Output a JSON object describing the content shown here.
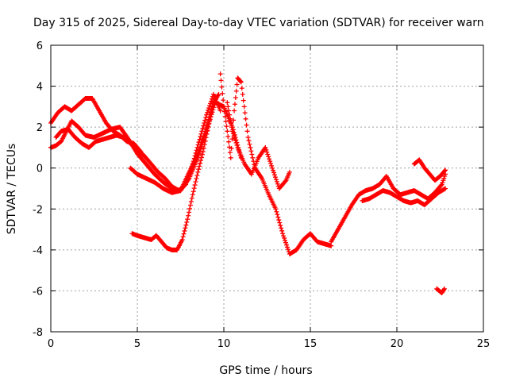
{
  "chart_data": {
    "type": "scatter",
    "title": "Day 315 of 2025, Sidereal Day-to-day VTEC variation (SDTVAR) for receiver warn",
    "xlabel": "GPS time / hours",
    "ylabel": "SDTVAR / TECUs",
    "xlim": [
      0,
      25
    ],
    "ylim": [
      -8,
      6
    ],
    "xticks": [
      0,
      5,
      10,
      15,
      20,
      25
    ],
    "yticks": [
      -8,
      -6,
      -4,
      -2,
      0,
      2,
      4,
      6
    ],
    "xtick_labels": [
      "0",
      "5",
      "10",
      "15",
      "20",
      "25"
    ],
    "ytick_labels": [
      "-8",
      "-6",
      "-4",
      "-2",
      "0",
      "2",
      "4",
      "6"
    ],
    "grid": true,
    "marker": "+",
    "color": "#ff0000",
    "series": [
      {
        "name": "trace-a",
        "x": [
          0.0,
          0.4,
          0.8,
          1.2,
          1.6,
          2.0,
          2.4,
          2.8,
          3.2,
          3.6,
          4.0,
          4.4,
          4.8,
          5.2
        ],
        "y": [
          2.2,
          2.7,
          3.0,
          2.8,
          3.1,
          3.4,
          3.4,
          2.8,
          2.2,
          1.8,
          1.6,
          1.3,
          1.2,
          0.8
        ]
      },
      {
        "name": "trace-b",
        "x": [
          0.0,
          0.3,
          0.6,
          0.9,
          1.2,
          1.6,
          2.0,
          2.5,
          3.0,
          3.5,
          4.0,
          4.5,
          5.0,
          5.5,
          6.0,
          6.5,
          7.0,
          7.5,
          8.0,
          8.5,
          9.0,
          9.5
        ],
        "y": [
          1.0,
          1.1,
          1.3,
          1.8,
          2.3,
          2.0,
          1.6,
          1.5,
          1.7,
          1.9,
          2.0,
          1.4,
          0.7,
          0.2,
          -0.3,
          -0.7,
          -1.0,
          -1.1,
          -0.2,
          0.7,
          2.0,
          3.5
        ]
      },
      {
        "name": "trace-c",
        "x": [
          0.3,
          0.6,
          1.0,
          1.4,
          1.8,
          2.2,
          2.6,
          3.0,
          3.4,
          3.8,
          4.2,
          4.6,
          5.0,
          5.4,
          5.8,
          6.2,
          6.6,
          7.0,
          7.4,
          7.8,
          8.2,
          8.6,
          9.0,
          9.4,
          9.8
        ],
        "y": [
          1.5,
          1.8,
          1.9,
          1.5,
          1.2,
          1.0,
          1.3,
          1.4,
          1.5,
          1.6,
          1.5,
          1.2,
          0.9,
          0.6,
          0.2,
          -0.2,
          -0.5,
          -0.9,
          -1.1,
          -0.8,
          0.2,
          1.4,
          2.6,
          3.6,
          2.8
        ]
      },
      {
        "name": "trace-d",
        "x": [
          4.6,
          5.0,
          5.5,
          6.0,
          6.5,
          7.0,
          7.5,
          8.0,
          8.5,
          9.0,
          9.5,
          10.0,
          10.5,
          11.0
        ],
        "y": [
          0.0,
          -0.3,
          -0.5,
          -0.7,
          -1.0,
          -1.2,
          -1.1,
          -0.5,
          0.5,
          1.8,
          3.2,
          3.0,
          2.0,
          0.5
        ]
      },
      {
        "name": "trace-e",
        "x": [
          4.7,
          5.0,
          5.4,
          5.8,
          6.1,
          6.4,
          6.7,
          7.0,
          7.3,
          7.6,
          7.9,
          8.2,
          8.5,
          8.8,
          9.1,
          9.4,
          9.7
        ],
        "y": [
          -3.2,
          -3.3,
          -3.4,
          -3.5,
          -3.3,
          -3.6,
          -3.9,
          -4.0,
          -4.0,
          -3.5,
          -2.5,
          -1.3,
          -0.2,
          0.8,
          2.0,
          3.2,
          3.6
        ]
      },
      {
        "name": "trace-f",
        "x": [
          9.8,
          10.0,
          10.2,
          10.4,
          10.6,
          10.8,
          11.0,
          11.4,
          11.8,
          12.2,
          12.6,
          13.0,
          13.4,
          13.8,
          14.2,
          14.6,
          15.0,
          15.4,
          15.8,
          16.2
        ],
        "y": [
          4.6,
          3.0,
          1.8,
          0.5,
          2.8,
          4.4,
          4.2,
          1.5,
          0.0,
          -0.5,
          -1.3,
          -2.0,
          -3.2,
          -4.2,
          -4.0,
          -3.5,
          -3.2,
          -3.6,
          -3.7,
          -3.8
        ]
      },
      {
        "name": "trace-g",
        "x": [
          10.2,
          10.5,
          10.8,
          11.2,
          11.6,
          12.0,
          12.4,
          12.8,
          13.2,
          13.6,
          13.8
        ],
        "y": [
          3.2,
          1.8,
          1.0,
          0.2,
          -0.3,
          0.5,
          1.0,
          0.0,
          -1.0,
          -0.6,
          -0.2
        ]
      },
      {
        "name": "trace-h",
        "x": [
          16.2,
          16.6,
          17.0,
          17.4,
          17.8,
          18.2,
          18.6,
          19.0,
          19.4,
          19.8,
          20.2,
          20.6,
          21.0,
          21.4,
          21.8,
          22.2,
          22.6,
          22.8
        ],
        "y": [
          -3.6,
          -3.0,
          -2.4,
          -1.8,
          -1.3,
          -1.1,
          -1.0,
          -0.8,
          -0.4,
          -1.0,
          -1.3,
          -1.2,
          -1.1,
          -1.3,
          -1.5,
          -1.2,
          -0.8,
          -0.3
        ]
      },
      {
        "name": "trace-i",
        "x": [
          18.0,
          18.4,
          18.8,
          19.2,
          19.6,
          20.0,
          20.4,
          20.8,
          21.2,
          21.6,
          22.0,
          22.4,
          22.8
        ],
        "y": [
          -1.6,
          -1.5,
          -1.3,
          -1.1,
          -1.2,
          -1.4,
          -1.6,
          -1.7,
          -1.6,
          -1.8,
          -1.5,
          -1.2,
          -1.0
        ]
      },
      {
        "name": "trace-j",
        "x": [
          21.0,
          21.3,
          21.6,
          21.9,
          22.2,
          22.5,
          22.8
        ],
        "y": [
          0.2,
          0.4,
          0.0,
          -0.3,
          -0.6,
          -0.4,
          -0.1
        ]
      },
      {
        "name": "trace-k",
        "x": [
          22.3,
          22.45,
          22.6,
          22.75
        ],
        "y": [
          -5.9,
          -6.0,
          -6.1,
          -5.9
        ]
      }
    ]
  }
}
